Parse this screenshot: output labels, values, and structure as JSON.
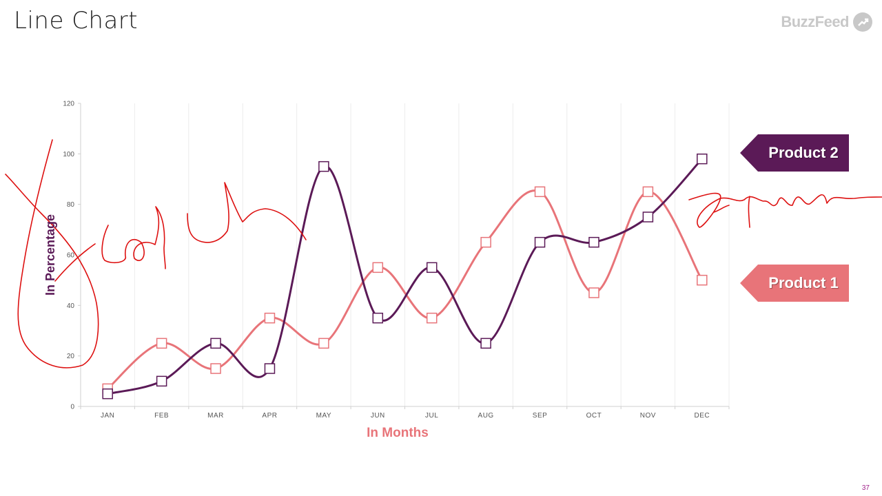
{
  "slide": {
    "title": "Line Chart",
    "brand": "BuzzFeed",
    "page_number": "37"
  },
  "legend": {
    "product2_label": "Product 2",
    "product1_label": "Product 1"
  },
  "colors": {
    "product2": "#5b1a57",
    "product1": "#e87479",
    "annotation": "#dd1010",
    "axis_text": "#555555",
    "page_num": "#a0208a"
  },
  "chart_data": {
    "type": "line",
    "title": "",
    "xlabel": "In Months",
    "ylabel": "In Percentage",
    "categories": [
      "JAN",
      "FEB",
      "MAR",
      "APR",
      "MAY",
      "JUN",
      "JUL",
      "AUG",
      "SEP",
      "OCT",
      "NOV",
      "DEC"
    ],
    "ylim": [
      0,
      120
    ],
    "yticks": [
      0,
      20,
      40,
      60,
      80,
      100,
      120
    ],
    "grid": "vertical",
    "series": [
      {
        "name": "Product 2",
        "values": [
          5,
          10,
          25,
          15,
          95,
          35,
          55,
          25,
          65,
          65,
          75,
          98
        ]
      },
      {
        "name": "Product 1",
        "values": [
          7,
          25,
          15,
          35,
          25,
          55,
          35,
          65,
          85,
          45,
          85,
          50
        ]
      }
    ]
  }
}
